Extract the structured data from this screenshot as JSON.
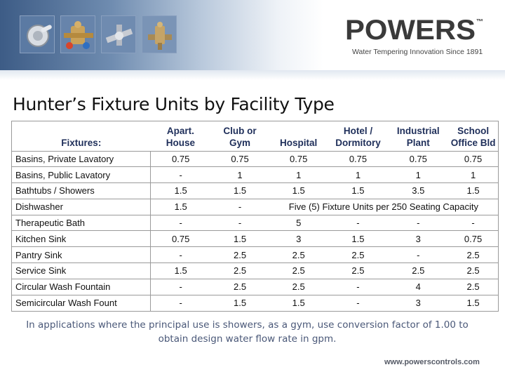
{
  "brand": {
    "logo_text": "POWERS",
    "trademark": "™",
    "tagline": "Water Tempering Innovation Since 1891",
    "website": "www.powerscontrols.com",
    "colors": {
      "header_dark": "#3d5c86",
      "logo": "#3a3a3a",
      "table_header": "#1f2f5a",
      "note": "#4a5878"
    }
  },
  "header_images": [
    "valve-handle-icon",
    "mixing-valve-icon",
    "pipe-fitting-icon",
    "thermostatic-valve-icon"
  ],
  "title": "Hunter’s Fixture Units by Facility Type",
  "table": {
    "row_header": "Fixtures:",
    "columns": [
      {
        "line1": "Apart.",
        "line2": "House"
      },
      {
        "line1": "Club or",
        "line2": "Gym"
      },
      {
        "line1": "",
        "line2": "Hospital"
      },
      {
        "line1": "Hotel /",
        "line2": "Dormitory"
      },
      {
        "line1": "Industrial",
        "line2": "Plant"
      },
      {
        "line1": "School",
        "line2": "Office Bld"
      }
    ],
    "rows": [
      {
        "name": "Basins, Private Lavatory",
        "values": [
          "0.75",
          "0.75",
          "0.75",
          "0.75",
          "0.75",
          "0.75"
        ]
      },
      {
        "name": "Basins, Public Lavatory",
        "values": [
          "-",
          "1",
          "1",
          "1",
          "1",
          "1"
        ]
      },
      {
        "name": "Bathtubs / Showers",
        "values": [
          "1.5",
          "1.5",
          "1.5",
          "1.5",
          "3.5",
          "1.5"
        ]
      },
      {
        "name": "Dishwasher",
        "values": [
          "1.5",
          "-"
        ],
        "span_note": "Five (5) Fixture Units per 250 Seating Capacity"
      },
      {
        "name": "Therapeutic Bath",
        "values": [
          "-",
          "-",
          "5",
          "-",
          "-",
          "-"
        ]
      },
      {
        "name": "Kitchen Sink",
        "values": [
          "0.75",
          "1.5",
          "3",
          "1.5",
          "3",
          "0.75"
        ]
      },
      {
        "name": "Pantry Sink",
        "values": [
          "-",
          "2.5",
          "2.5",
          "2.5",
          "-",
          "2.5"
        ]
      },
      {
        "name": "Service Sink",
        "values": [
          "1.5",
          "2.5",
          "2.5",
          "2.5",
          "2.5",
          "2.5"
        ]
      },
      {
        "name": "Circular Wash Fountain",
        "values": [
          "-",
          "2.5",
          "2.5",
          "-",
          "4",
          "2.5"
        ]
      },
      {
        "name": "Semicircular Wash Fount",
        "values": [
          "-",
          "1.5",
          "1.5",
          "-",
          "3",
          "1.5"
        ]
      }
    ]
  },
  "note": "In applications where the principal use is showers, as a gym, use conversion factor of 1.00 to obtain design water flow rate in gpm."
}
